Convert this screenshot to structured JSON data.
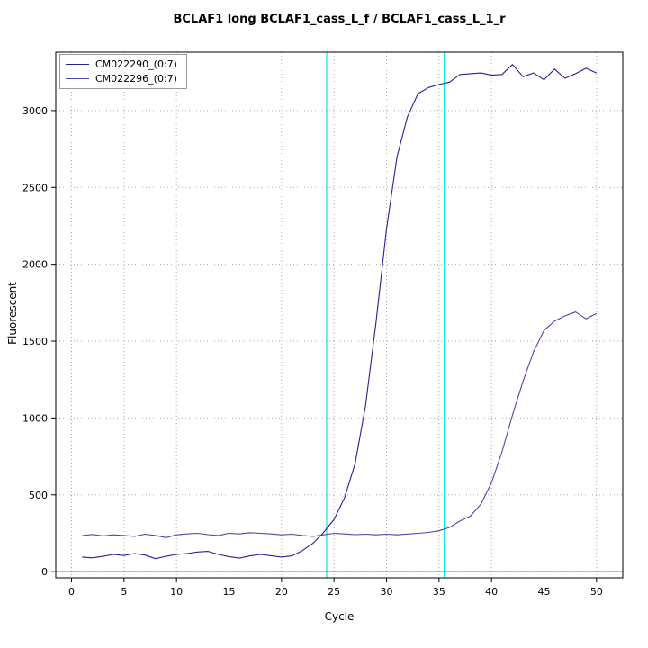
{
  "chart_data": {
    "type": "line",
    "title": "BCLAF1 long BCLAF1_cass_L_f / BCLAF1_cass_L_1_r",
    "xlabel": "Cycle",
    "ylabel": "Fluorescent",
    "xlim": [
      -1.5,
      52.5
    ],
    "ylim": [
      -40,
      3380
    ],
    "x_ticks": [
      0,
      5,
      10,
      15,
      20,
      25,
      30,
      35,
      40,
      45,
      50
    ],
    "y_ticks": [
      0,
      500,
      1000,
      1500,
      2000,
      2500,
      3000
    ],
    "grid": "dotted",
    "grid_color": "#a8a8a8",
    "legend_position": "top-left",
    "x": [
      1,
      2,
      3,
      4,
      5,
      6,
      7,
      8,
      9,
      10,
      11,
      12,
      13,
      14,
      15,
      16,
      17,
      18,
      19,
      20,
      21,
      22,
      23,
      24,
      25,
      26,
      27,
      28,
      29,
      30,
      31,
      32,
      33,
      34,
      35,
      36,
      37,
      38,
      39,
      40,
      41,
      42,
      43,
      44,
      45,
      46,
      47,
      48,
      49,
      50
    ],
    "series": [
      {
        "name": "CM022290_(0:7)",
        "color": "#24248f",
        "values": [
          95,
          90,
          100,
          112,
          105,
          118,
          108,
          85,
          100,
          112,
          118,
          128,
          132,
          112,
          98,
          88,
          103,
          112,
          104,
          95,
          103,
          138,
          185,
          255,
          340,
          480,
          700,
          1080,
          1620,
          2230,
          2700,
          2960,
          3110,
          3150,
          3170,
          3185,
          3235,
          3240,
          3245,
          3230,
          3235,
          3300,
          3220,
          3245,
          3200,
          3270,
          3210,
          3240,
          3275,
          3245
        ]
      },
      {
        "name": "CM022296_(0:7)",
        "color": "#4848a8",
        "values": [
          235,
          242,
          233,
          240,
          236,
          230,
          244,
          236,
          222,
          240,
          246,
          250,
          241,
          236,
          250,
          246,
          254,
          250,
          246,
          240,
          244,
          236,
          230,
          240,
          250,
          246,
          241,
          244,
          240,
          244,
          240,
          245,
          250,
          256,
          266,
          288,
          330,
          362,
          440,
          580,
          780,
          1020,
          1240,
          1430,
          1570,
          1630,
          1665,
          1690,
          1645,
          1680
        ]
      }
    ],
    "threshold_lines": {
      "color": "#00e5ee",
      "x_values": [
        24.3,
        35.5
      ]
    },
    "baseline_line": {
      "color": "#b22222",
      "y": 0
    }
  }
}
